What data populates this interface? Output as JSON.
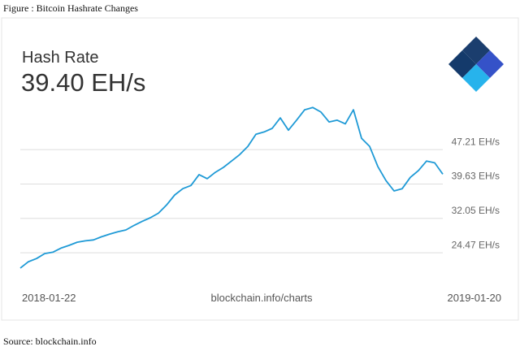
{
  "caption": "Figure : Bitcoin Hashrate Changes",
  "source": "Source: blockchain.info",
  "chart_data": {
    "type": "line",
    "title": "Hash Rate",
    "subtitle": "39.40 EH/s",
    "annotation": "blockchain.info/charts",
    "categories": [
      "2018-01-22",
      null,
      null,
      null,
      null,
      null,
      null,
      null,
      null,
      null,
      null,
      null,
      null,
      null,
      null,
      null,
      null,
      null,
      null,
      null,
      null,
      null,
      null,
      null,
      null,
      null,
      null,
      null,
      null,
      null,
      null,
      null,
      null,
      null,
      null,
      null,
      null,
      null,
      null,
      null,
      null,
      null,
      null,
      null,
      null,
      null,
      null,
      null,
      null,
      null,
      null,
      null,
      "2019-01-20"
    ],
    "values": [
      21.1,
      22.5,
      23.2,
      24.3,
      24.6,
      25.5,
      26.1,
      26.8,
      27.1,
      27.3,
      28.0,
      28.6,
      29.1,
      29.5,
      30.5,
      31.4,
      32.2,
      33.2,
      35.0,
      37.2,
      38.6,
      39.3,
      41.7,
      40.8,
      42.2,
      43.3,
      44.7,
      46.1,
      47.9,
      50.6,
      51.1,
      51.9,
      54.2,
      51.5,
      53.7,
      56.0,
      56.5,
      55.5,
      53.3,
      53.7,
      52.9,
      56.0,
      49.7,
      47.9,
      43.5,
      40.4,
      38.1,
      38.6,
      41.1,
      42.6,
      44.7,
      44.3,
      41.8
    ],
    "color": "#1f9ad6",
    "ylim": [
      18.4,
      58.7
    ],
    "yticks": [
      {
        "value": 24.47,
        "label": "24.47 EH/s"
      },
      {
        "value": 32.05,
        "label": "32.05 EH/s"
      },
      {
        "value": 39.63,
        "label": "39.63 EH/s"
      },
      {
        "value": 47.21,
        "label": "47.21 EH/s"
      }
    ],
    "grid": true
  }
}
